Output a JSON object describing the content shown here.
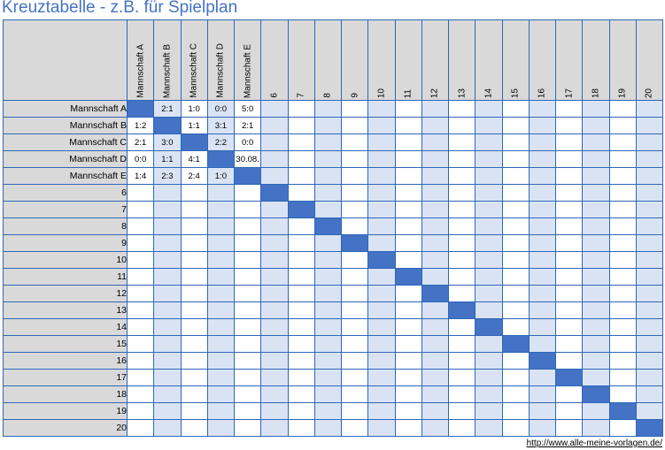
{
  "title": "Kreuztabelle - z.B. für Spielplan",
  "columns": [
    "Mannschaft A",
    "Mannschaft B",
    "Mannschaft C",
    "Mannschaft D",
    "Mannschaft E",
    "6",
    "7",
    "8",
    "9",
    "10",
    "11",
    "12",
    "13",
    "14",
    "15",
    "16",
    "17",
    "18",
    "19",
    "20"
  ],
  "rows": [
    "Mannschaft A",
    "Mannschaft B",
    "Mannschaft C",
    "Mannschaft D",
    "Mannschaft E",
    "6",
    "7",
    "8",
    "9",
    "10",
    "11",
    "12",
    "13",
    "14",
    "15",
    "16",
    "17",
    "18",
    "19",
    "20"
  ],
  "results": [
    [
      "",
      "2:1",
      "1:0",
      "0:0",
      "5:0"
    ],
    [
      "1:2",
      "",
      "1:1",
      "3:1",
      "2:1"
    ],
    [
      "2:1",
      "3:0",
      "",
      "2:2",
      "0:0"
    ],
    [
      "0:0",
      "1:1",
      "4:1",
      "",
      "30.08."
    ],
    [
      "1:4",
      "2:3",
      "2:4",
      "1:0",
      ""
    ]
  ],
  "footer_link": "http://www.alle-meine-vorlagen.de/"
}
